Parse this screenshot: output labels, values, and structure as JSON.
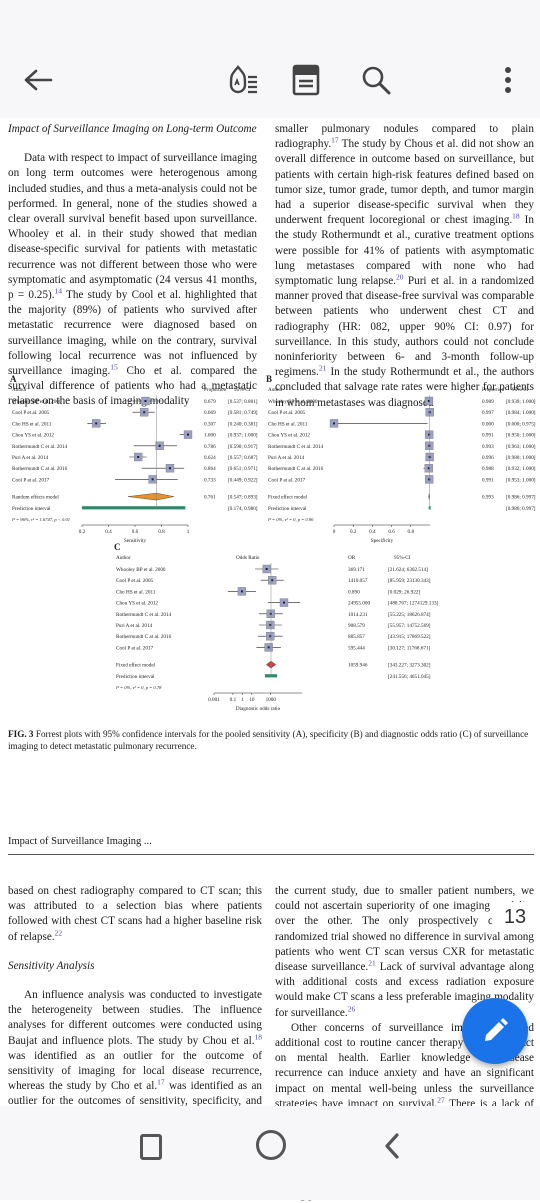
{
  "toolbar": {
    "icons": [
      "back-arrow-icon",
      "text-to-speech-icon",
      "reading-mode-icon",
      "search-icon",
      "more-vert-icon"
    ]
  },
  "page1": {
    "left": {
      "heading": "Impact of Surveillance Imaging on Long-term Outcome",
      "para": [
        "Data with respect to impact of surveillance imaging on long term outcomes were heterogenous among included studies, and thus a meta-analysis could not be performed. In general, none of the studies showed a clear overall survival benefit based upon surveillance. Whooley et al. in their study showed that median disease-specific survival for patients with metastatic recurrence was not different between those who were symptomatic and asymptomatic (24 versus 41 months, p = 0.25).",
        "14",
        " The study by Cool et al. highlighted that the majority (89%) of patients who survived after metastatic recurrence were diagnosed based on surveillance imaging, while on the contrary, survival following local recurrence was not influenced by surveillance imaging.",
        "15",
        " Cho et al. compared the survival difference of patients who had a metastatic relapse on the basis of imaging modality"
      ]
    },
    "right": {
      "para": [
        "smaller pulmonary nodules compared to plain radiography.",
        "17",
        " The study by Chous et al. did not show an overall difference in outcome based on surveillance, but patients with certain high-risk features defined based on tumor size, tumor grade, tumor depth, and tumor margin had a superior disease-specific survival when they underwent frequent locoregional or chest imaging.",
        "18",
        " In the study Rothermundt et al., curative treatment options were possible for 41% of patients with asymptomatic lung metastases compared with none who had symptomatic lung relapse.",
        "20",
        " Puri et al. in a randomized manner proved that disease-free survival was comparable between patients who underwent chest CT and radiography (HR: 082, upper 90% CI: 0.97) for surveillance. In this study, authors could not conclude noninferiority between 6- and 3-month follow-up regimens.",
        "21",
        " In the study Rothermundt et al., the authors concluded that salvage rate rates were higher for patients in whom metastases was diagnosed"
      ]
    }
  },
  "figure": {
    "panel_labels": [
      "A",
      "B",
      "C"
    ],
    "panelA": {
      "col_author": "Author",
      "col_prop": "Proportion",
      "col_ci": "95%-CI",
      "studies": [
        {
          "author": "Whooley BP et al. 2000",
          "prop": "0.679",
          "ci": "[0.537; 0.801]",
          "val": 0.679,
          "lo": 0.537,
          "hi": 0.801
        },
        {
          "author": "Cool P et al. 2005",
          "prop": "0.669",
          "ci": "[0.581; 0.749]",
          "val": 0.669,
          "lo": 0.581,
          "hi": 0.749
        },
        {
          "author": "Cho HS et al. 2011",
          "prop": "0.307",
          "ci": "[0.240; 0.381]",
          "val": 0.307,
          "lo": 0.24,
          "hi": 0.381
        },
        {
          "author": "Chou YS et al. 2012",
          "prop": "1.000",
          "ci": "[0.937; 1.000]",
          "val": 1.0,
          "lo": 0.937,
          "hi": 1.0
        },
        {
          "author": "Rothermundt C et al. 2014",
          "prop": "0.786",
          "ci": "[0.590; 0.917]",
          "val": 0.786,
          "lo": 0.59,
          "hi": 0.917
        },
        {
          "author": "Puri A et al. 2014",
          "prop": "0.624",
          "ci": "[0.557; 0.687]",
          "val": 0.624,
          "lo": 0.557,
          "hi": 0.687
        },
        {
          "author": "Rothermundt C at al. 2016",
          "prop": "0.864",
          "ci": "[0.651; 0.971]",
          "val": 0.864,
          "lo": 0.651,
          "hi": 0.971
        },
        {
          "author": "Cool P at al. 2017",
          "prop": "0.733",
          "ci": "[0.449; 0.922]",
          "val": 0.733,
          "lo": 0.449,
          "hi": 0.922
        }
      ],
      "summary_label": "Random effects model",
      "summary_prop": "0.761",
      "summary_ci": "[0.547; 0.893]",
      "summary": {
        "val": 0.761,
        "lo": 0.547,
        "hi": 0.893
      },
      "pi_label": "Prediction interval",
      "pi_ci": "[0.174; 0.980]",
      "pi": {
        "lo": 0.174,
        "hi": 0.98
      },
      "het": "I² = 96%, τ² = 1.6747, p < 0.01",
      "ticks": [
        "0.2",
        "0.4",
        "0.6",
        "0.8",
        "1"
      ],
      "tick_vals": [
        0.2,
        0.4,
        0.6,
        0.8,
        1.0
      ],
      "xlabel": "Sensitivity"
    },
    "panelB": {
      "col_author": "Author",
      "col_prop": "Proportion",
      "col_ci": "95%-CI",
      "studies": [
        {
          "author": "Whooley BP et al. 2000",
          "prop": "0.989",
          "ci": "[0.939; 1.000]",
          "val": 0.989,
          "lo": 0.939,
          "hi": 1.0
        },
        {
          "author": "Cool P et al. 2005",
          "prop": "0.997",
          "ci": "[0.984; 1.000]",
          "val": 0.997,
          "lo": 0.984,
          "hi": 1.0
        },
        {
          "author": "Cho HS et al. 2011",
          "prop": "0.000",
          "ci": "[0.000; 0.975]",
          "val": 0.0,
          "lo": 0.0,
          "hi": 0.975
        },
        {
          "author": "Chou YS et al. 2012",
          "prop": "0.991",
          "ci": "[0.950; 1.000]",
          "val": 0.991,
          "lo": 0.95,
          "hi": 1.0
        },
        {
          "author": "Rothermundt C et al. 2014",
          "prop": "0.993",
          "ci": "[0.963; 1.000]",
          "val": 0.993,
          "lo": 0.963,
          "hi": 1.0
        },
        {
          "author": "Puri A et al. 2014",
          "prop": "0.996",
          "ci": "[0.980; 1.000]",
          "val": 0.996,
          "lo": 0.98,
          "hi": 1.0
        },
        {
          "author": "Rothermundt C at al. 2016",
          "prop": "0.988",
          "ci": "[0.932; 1.000]",
          "val": 0.988,
          "lo": 0.932,
          "hi": 1.0
        },
        {
          "author": "Cool P at al. 2017",
          "prop": "0.991",
          "ci": "[0.953; 1.000]",
          "val": 0.991,
          "lo": 0.953,
          "hi": 1.0
        }
      ],
      "summary_label": "Fixed effect model",
      "summary_prop": "0.993",
      "summary_ci": "[0.986; 0.997]",
      "summary": {
        "val": 0.993,
        "lo": 0.986,
        "hi": 0.997
      },
      "pi_label": "Prediction interval",
      "pi_ci": "[0.986; 0.997]",
      "pi": {
        "lo": 0.986,
        "hi": 0.997
      },
      "het": "I² = 0%, τ² = 0, p = 0.96",
      "ticks": [
        "0",
        "0.2",
        "0.4",
        "0.6",
        "0.8"
      ],
      "tick_vals": [
        0,
        0.2,
        0.4,
        0.6,
        0.8
      ],
      "xlabel": "Specificity"
    },
    "panelC": {
      "col_author": "Author",
      "col_or_head": "Odds Ratio",
      "col_or": "OR",
      "col_ci": "95%-CI",
      "studies": [
        {
          "author": "Whooley BP et al. 2000",
          "or": "369.171",
          "ci": "[21.624; 6302.514]",
          "val": 369.171,
          "lo": 21.624,
          "hi": 6302.514
        },
        {
          "author": "Cool P et al. 2005",
          "or": "1410.057",
          "ci": "[85.959; 23130.343]",
          "val": 1410.057,
          "lo": 85.959,
          "hi": 23130.343
        },
        {
          "author": "Cho HS et al. 2011",
          "or": "0.890",
          "ci": "[0.029; 26.922]",
          "val": 0.89,
          "lo": 0.029,
          "hi": 26.922
        },
        {
          "author": "Chou YS et al. 2012",
          "or": "24955.000",
          "ci": "[488.767; 1274129.133]",
          "val": 24955.0,
          "lo": 488.767,
          "hi": 1274129.133
        },
        {
          "author": "Rothermundt C et al. 2014",
          "or": "1014.231",
          "ci": "[55.225; 18626.874]",
          "val": 1014.231,
          "lo": 55.225,
          "hi": 18626.874
        },
        {
          "author": "Puri A et al. 2014",
          "or": "908.579",
          "ci": "[55.957; 14752.569]",
          "val": 908.579,
          "lo": 55.957,
          "hi": 14752.569
        },
        {
          "author": "Rothermundt C at al. 2016",
          "or": "885.857",
          "ci": "[43.915; 17869.522]",
          "val": 885.857,
          "lo": 43.915,
          "hi": 17869.522
        },
        {
          "author": "Cool P at al. 2017",
          "or": "595.444",
          "ci": "[30.127; 11768.671]",
          "val": 595.444,
          "lo": 30.127,
          "hi": 11768.671
        }
      ],
      "summary_label": "Fixed effect model",
      "summary_or": "1059.946",
      "summary_ci": "[343.227; 3273.302]",
      "summary": {
        "val": 1059.946,
        "lo": 343.227,
        "hi": 3273.302
      },
      "pi_label": "Prediction interval",
      "pi_ci": "[241.556; 4651.045]",
      "pi": {
        "lo": 241.556,
        "hi": 4651.045
      },
      "het": "I² = 0%, τ² = 0, p = 0.78",
      "ticks": [
        "0.001",
        "0.1",
        "1",
        "10",
        "1000"
      ],
      "tick_vals": [
        0.001,
        0.1,
        1,
        10,
        1000
      ],
      "xlabel": "Diagnostic odds ratio"
    },
    "caption_label": "FIG. 3",
    "caption": " Forrest plots with 95% confidence intervals for the pooled sensitivity (A), specificity (B) and diagnostic odds ratio (C) of surveillance imaging to detect metastatic pulmonary recurrence."
  },
  "chart_data": [
    {
      "type": "scatter",
      "title": "A",
      "xlabel": "Sensitivity",
      "xlim": [
        0.2,
        1.0
      ],
      "categories": [
        "Whooley BP et al. 2000",
        "Cool P et al. 2005",
        "Cho HS et al. 2011",
        "Chou YS et al. 2012",
        "Rothermundt C et al. 2014",
        "Puri A et al. 2014",
        "Rothermundt C at al. 2016",
        "Cool P at al. 2017",
        "Random effects model"
      ],
      "values": [
        0.679,
        0.669,
        0.307,
        1.0,
        0.786,
        0.624,
        0.864,
        0.733,
        0.761
      ]
    },
    {
      "type": "scatter",
      "title": "B",
      "xlabel": "Specificity",
      "xlim": [
        0,
        1.0
      ],
      "categories": [
        "Whooley BP et al. 2000",
        "Cool P et al. 2005",
        "Cho HS et al. 2011",
        "Chou YS et al. 2012",
        "Rothermundt C et al. 2014",
        "Puri A et al. 2014",
        "Rothermundt C at al. 2016",
        "Cool P at al. 2017",
        "Fixed effect model"
      ],
      "values": [
        0.989,
        0.997,
        0.0,
        0.991,
        0.993,
        0.996,
        0.988,
        0.991,
        0.993
      ]
    },
    {
      "type": "scatter",
      "title": "C",
      "xlabel": "Diagnostic odds ratio",
      "xscale": "log",
      "categories": [
        "Whooley BP et al. 2000",
        "Cool P et al. 2005",
        "Cho HS et al. 2011",
        "Chou YS et al. 2012",
        "Rothermundt C et al. 2014",
        "Puri A et al. 2014",
        "Rothermundt C at al. 2016",
        "Cool P at al. 2017",
        "Fixed effect model"
      ],
      "values": [
        369.171,
        1410.057,
        0.89,
        24955.0,
        1014.231,
        908.579,
        885.857,
        595.444,
        1059.946
      ]
    }
  ],
  "page2": {
    "running_head": "Impact of Surveillance Imaging ...",
    "left": {
      "p1": "based on chest radiography compared to CT scan; this was attributed to a selection bias where patients followed with chest CT scans had a higher baseline risk of relapse.",
      "p1_ref": "22",
      "heading": "Sensitivity Analysis",
      "p2": "An influence analysis was conducted to investigate the heterogeneity between studies. The influence analyses for different outcomes were conducted using Baujat and influence plots. The study by Chou et al.",
      "p2_ref": "18",
      "p2b": " was identified as an outlier for the outcome of sensitivity of imaging for local disease recurrence, whereas the study by Cho et al.",
      "p2_ref2": "17",
      "p2c": " was identified as an outlier for the outcomes of sensitivity, specificity, and diagnostic odds ratio of imaging in metastatic disease (Supplementary Figs. 3, 4). These studies were found to significantly affect the pooled results. Subsequently, subgroup analyses were conducted after excluding these studies for the different outcomes (Supplementary Fig. 5)."
    },
    "right": {
      "p1": "the current study, due to smaller patient numbers, we could not ascertain superiority of one imaging modality over the other. The only prospectively conducted randomized trial showed no difference in survival among patients who went CT scan versus CXR for metastatic disease surveillance.",
      "p1_ref": "21",
      "p1b": " Lack of survival advantage along with additional costs and excess radiation exposure would make CT scans a less preferable imaging modality for surveillance.",
      "p1_ref2": "26",
      "p2": "Other concerns of surveillance imaging included additional cost to routine cancer therapy and its impact on mental health. Earlier knowledge of disease recurrence can induce anxiety and have an significant impact on mental well-being unless the surveillance strategies have impact on survival.",
      "p2_ref": "27",
      "p2b": " There is a lack of data to support the assumption that surveillance imaging affects long-term survival among patients with STS. In this current review, a majority of the studies did not show survival benefit with surveillance imaging while a few studies highlighted a subsequent superior outcome among patients with"
    }
  },
  "page_indicator": "13",
  "fab_icon": "edit-pencil-icon",
  "nav": {
    "icons": [
      "recents-icon",
      "home-icon",
      "back-icon"
    ]
  }
}
